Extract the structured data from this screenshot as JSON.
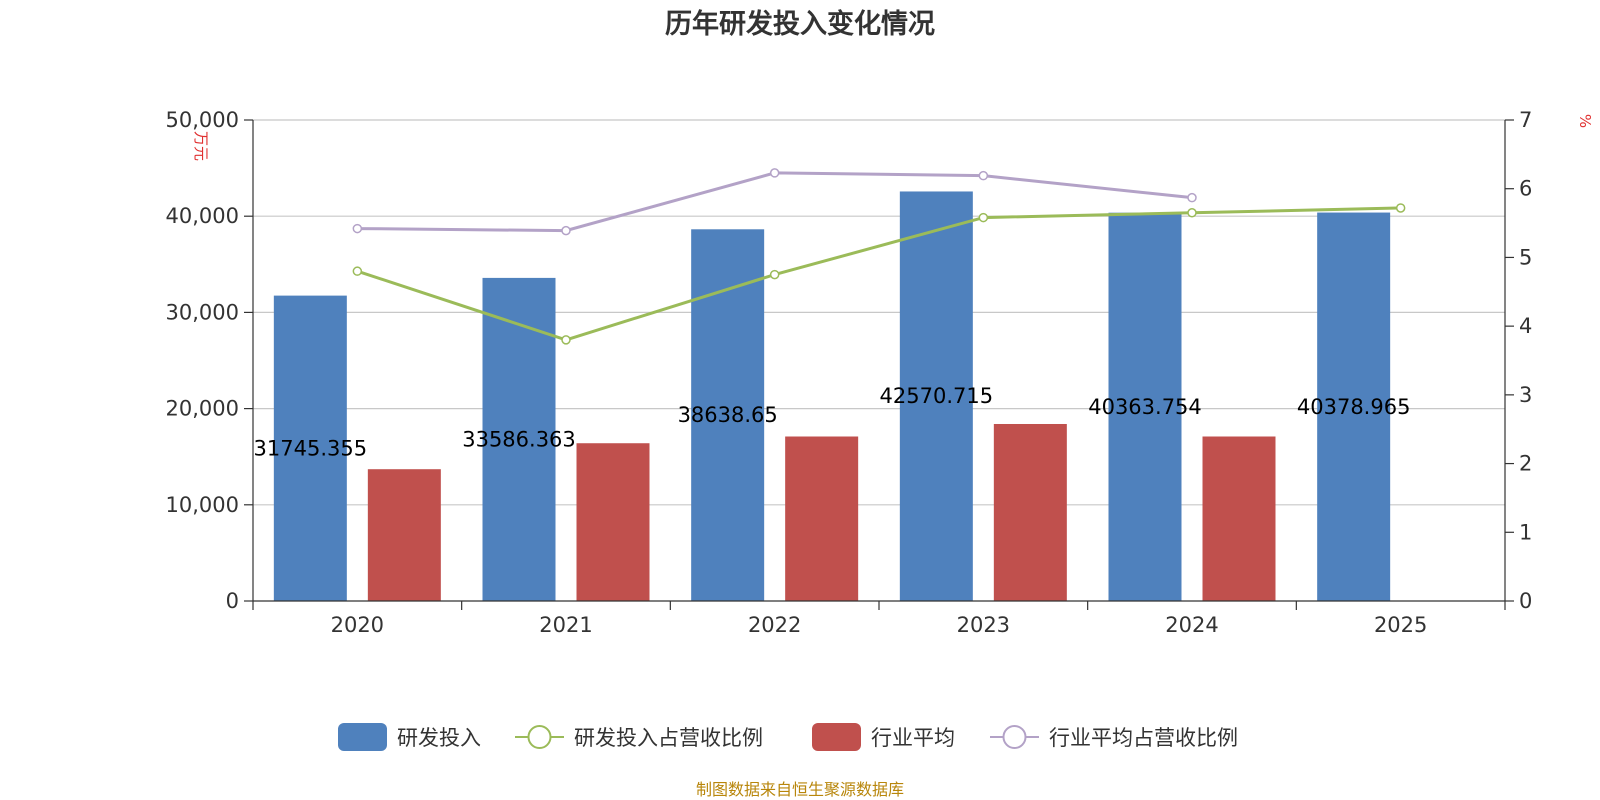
{
  "chart_data": {
    "type": "bar",
    "title": "历年研发投入变化情况",
    "categories": [
      "2020",
      "2021",
      "2022",
      "2023",
      "2024",
      "2025"
    ],
    "y_left": {
      "unit": "万元",
      "ylim": [
        0,
        50000
      ],
      "ticks": [
        "0",
        "10,000",
        "20,000",
        "30,000",
        "40,000",
        "50,000"
      ]
    },
    "y_right": {
      "unit": "%",
      "ylim": [
        0,
        7
      ],
      "ticks": [
        "0",
        "1",
        "2",
        "3",
        "4",
        "5",
        "6",
        "7"
      ]
    },
    "grid": true,
    "legend_position": "bottom",
    "series": [
      {
        "name": "研发投入",
        "type": "bar",
        "axis": "left",
        "color": "#4f81bd",
        "values": [
          31745.355,
          33586.363,
          38638.65,
          42570.715,
          40363.754,
          40378.965
        ],
        "labels": [
          "31745.355",
          "33586.363",
          "38638.65",
          "42570.715",
          "40363.754",
          "40378.965"
        ]
      },
      {
        "name": "研发投入占营收比例",
        "type": "line",
        "axis": "right",
        "color": "#9bbb59",
        "values": [
          4.8,
          3.8,
          4.75,
          5.58,
          5.65,
          5.72
        ]
      },
      {
        "name": "行业平均",
        "type": "bar",
        "axis": "left",
        "color": "#c0504d",
        "values": [
          13700,
          16400,
          17100,
          18400,
          17100,
          null
        ]
      },
      {
        "name": "行业平均占营收比例",
        "type": "line",
        "axis": "right",
        "color": "#b3a2c7",
        "values": [
          5.42,
          5.39,
          6.23,
          6.19,
          5.87,
          null
        ]
      }
    ]
  },
  "source_note": "制图数据来自恒生聚源数据库"
}
